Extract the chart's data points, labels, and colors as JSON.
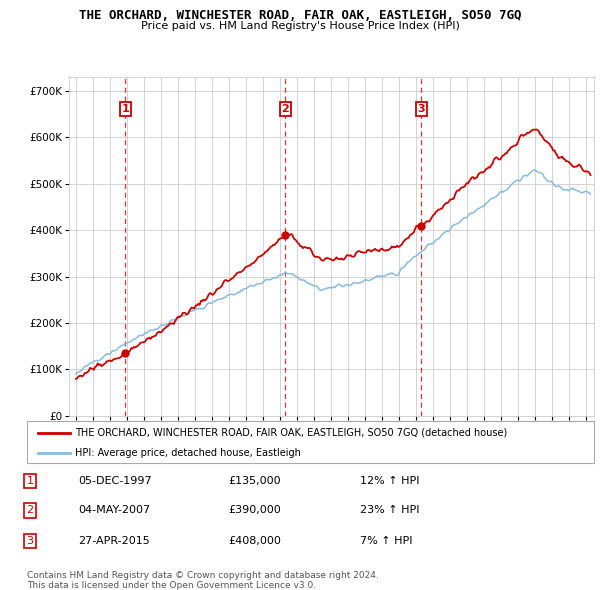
{
  "title": "THE ORCHARD, WINCHESTER ROAD, FAIR OAK, EASTLEIGH, SO50 7GQ",
  "subtitle": "Price paid vs. HM Land Registry's House Price Index (HPI)",
  "legend_line1": "THE ORCHARD, WINCHESTER ROAD, FAIR OAK, EASTLEIGH, SO50 7GQ (detached house)",
  "legend_line2": "HPI: Average price, detached house, Eastleigh",
  "red_color": "#cc0000",
  "blue_color": "#88bbdd",
  "table_rows": [
    {
      "num": "1",
      "date": "05-DEC-1997",
      "price": "£135,000",
      "hpi": "12% ↑ HPI"
    },
    {
      "num": "2",
      "date": "04-MAY-2007",
      "price": "£390,000",
      "hpi": "23% ↑ HPI"
    },
    {
      "num": "3",
      "date": "27-APR-2015",
      "price": "£408,000",
      "hpi": "7% ↑ HPI"
    }
  ],
  "sale_points": [
    {
      "year": 1997.92,
      "price": 135000,
      "label": "1"
    },
    {
      "year": 2007.33,
      "price": 390000,
      "label": "2"
    },
    {
      "year": 2015.32,
      "price": 408000,
      "label": "3"
    }
  ],
  "vline_years": [
    1997.92,
    2007.33,
    2015.32
  ],
  "footer_line1": "Contains HM Land Registry data © Crown copyright and database right 2024.",
  "footer_line2": "This data is licensed under the Open Government Licence v3.0.",
  "ylim": [
    0,
    730000
  ],
  "xlim_start": 1994.6,
  "xlim_end": 2025.5,
  "yticks": [
    0,
    100000,
    200000,
    300000,
    400000,
    500000,
    600000,
    700000
  ],
  "ytick_labels": [
    "£0",
    "£100K",
    "£200K",
    "£300K",
    "£400K",
    "£500K",
    "£600K",
    "£700K"
  ],
  "xticks": [
    1995,
    1996,
    1997,
    1998,
    1999,
    2000,
    2001,
    2002,
    2003,
    2004,
    2005,
    2006,
    2007,
    2008,
    2009,
    2010,
    2011,
    2012,
    2013,
    2014,
    2015,
    2016,
    2017,
    2018,
    2019,
    2020,
    2021,
    2022,
    2023,
    2024,
    2025
  ]
}
